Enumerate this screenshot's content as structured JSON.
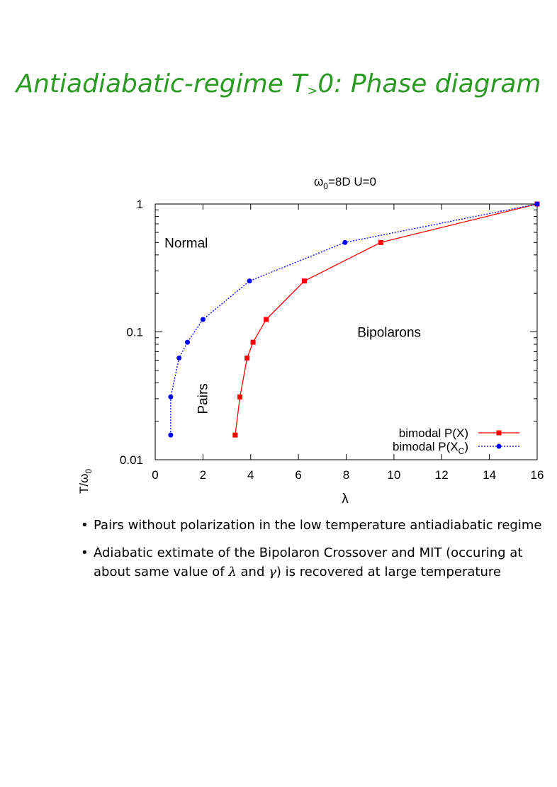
{
  "slide": {
    "title_main": "Antiadiabatic-regime T",
    "title_sub": ">",
    "title_rest": "0: Phase diagram"
  },
  "bullets": {
    "b1": "Pairs without polarization in the low temperature antiadiabatic regime",
    "b2_a": "Adiabatic extimate of the Bipolaron Crossover and MIT (occuring at about same value of ",
    "b2_lambda": "λ",
    "b2_and": " and ",
    "b2_gamma": "γ",
    "b2_b": ") is recovered at large temperature"
  },
  "chart_data": {
    "type": "line",
    "title_main": "ω",
    "title_sub": "0",
    "title_rest": "=8D U=0",
    "xlabel": "λ",
    "ylabel_main": "T/ω",
    "ylabel_sub": "0",
    "xlim": [
      0,
      16
    ],
    "ylim": [
      0.01,
      1
    ],
    "yscale": "log",
    "xticks": [
      "0",
      "2",
      "4",
      "6",
      "8",
      "10",
      "12",
      "14",
      "16"
    ],
    "yticks": [
      "0.01",
      "0.1",
      "1"
    ],
    "grid": false,
    "legend_position": "bottom-right",
    "annotations": [
      {
        "text": "Normal",
        "x": 1.3,
        "y": 0.5
      },
      {
        "text": "Bipolarons",
        "x": 9.8,
        "y": 0.1
      },
      {
        "text": "Pairs",
        "x": 2.0,
        "y": 0.03,
        "rotate": true
      }
    ],
    "series": [
      {
        "name_main": "bimodal P(X)",
        "name_sub": "",
        "name_end": "",
        "color": "#ff0000",
        "marker": "square",
        "dash": "",
        "x": [
          3.35,
          3.55,
          3.85,
          4.1,
          4.65,
          6.25,
          9.45,
          16.0
        ],
        "y": [
          0.0156,
          0.031,
          0.0625,
          0.083,
          0.125,
          0.25,
          0.5,
          1.0
        ]
      },
      {
        "name_main": "bimodal P(X",
        "name_sub": "C",
        "name_end": ")",
        "color": "#0000ff",
        "marker": "circle",
        "dash": "2,2",
        "x": [
          0.65,
          0.65,
          1.0,
          1.35,
          2.0,
          3.95,
          7.95,
          16.0
        ],
        "y": [
          0.0156,
          0.031,
          0.0625,
          0.083,
          0.125,
          0.25,
          0.5,
          1.0
        ]
      }
    ]
  }
}
